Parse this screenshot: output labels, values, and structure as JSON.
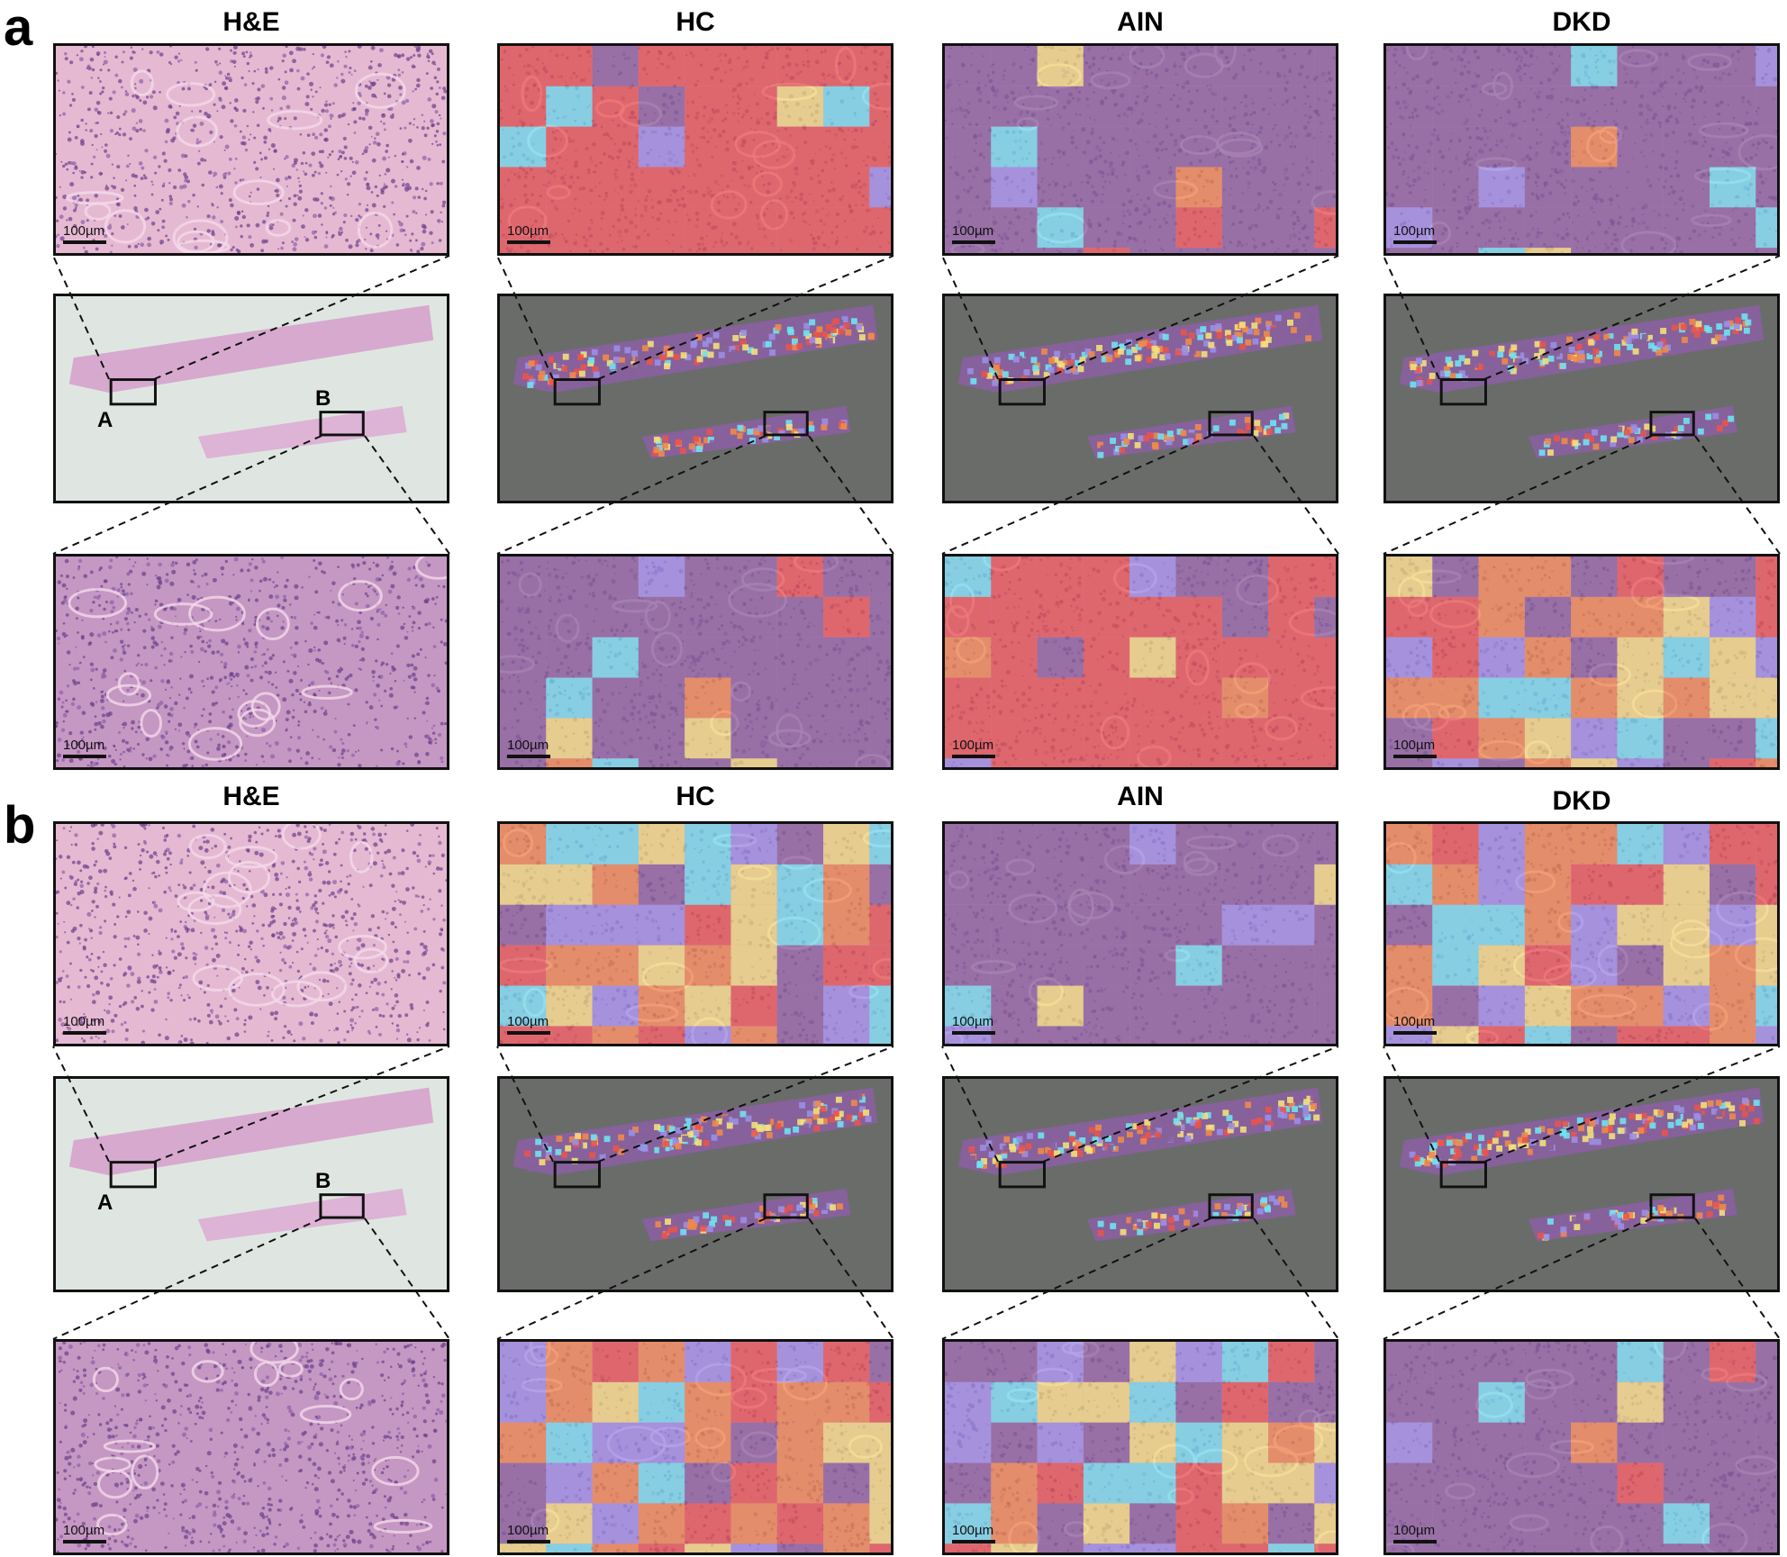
{
  "panels": [
    {
      "label": "a",
      "columns": [
        "H&E",
        "HC",
        "AIN",
        "DKD"
      ]
    },
    {
      "label": "b",
      "columns": [
        "H&E",
        "HC",
        "AIN",
        "DKD"
      ]
    }
  ],
  "region_labels": {
    "a": "A",
    "b": "B"
  },
  "scale_bar": "100µm",
  "colors": {
    "he_tissue": "#e6b9d2",
    "he_dense": "#c597c3",
    "background_dark": "#6a6c6a",
    "background_light": "#dfe6e1",
    "heat_red": "#e8544d",
    "heat_purple": "#86619b",
    "heat_blue": "#9a8fe6",
    "heat_cyan": "#6fe3f0",
    "heat_yellow": "#f3e07a",
    "heat_orange": "#f0894a"
  }
}
